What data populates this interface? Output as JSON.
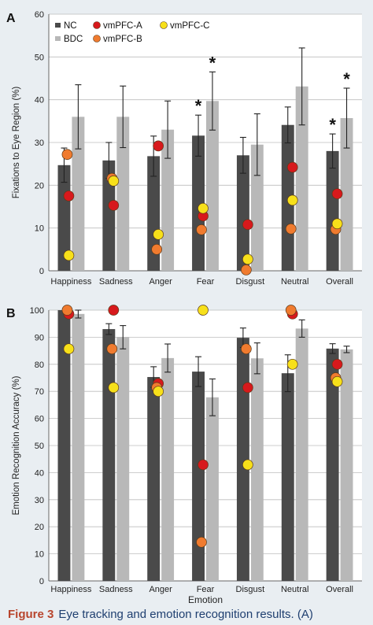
{
  "figure": {
    "caption_label": "Figure 3",
    "caption_text": "Eye tracking and emotion recognition results. (A)",
    "colors": {
      "nc": "#4a4a4a",
      "bdc": "#b8b8b8",
      "vmpfc_a": "#d7191c",
      "vmpfc_b": "#f07b2f",
      "vmpfc_c": "#f7e01a",
      "background": "#e9eef2",
      "caption": "#1f3f70"
    }
  },
  "chart_data": [
    {
      "panel": "A",
      "type": "bar",
      "ylabel": "Fixations to Eye Region (%)",
      "xlabel": "",
      "ylim": [
        0,
        60
      ],
      "yticks": [
        0,
        10,
        20,
        30,
        40,
        50,
        60
      ],
      "grid": true,
      "legend": [
        "NC",
        "BDC",
        "vmPFC-A",
        "vmPFC-C",
        "vmPFC-B"
      ],
      "categories": [
        "Happiness",
        "Sadness",
        "Anger",
        "Fear",
        "Disgust",
        "Neutral",
        "Overall"
      ],
      "series": [
        {
          "name": "NC",
          "values": [
            24.7,
            25.8,
            26.8,
            31.6,
            27.0,
            34.1,
            28.0
          ],
          "error": [
            4.0,
            4.2,
            4.7,
            4.8,
            4.2,
            4.2,
            4.0
          ]
        },
        {
          "name": "BDC",
          "values": [
            36.0,
            36.0,
            33.0,
            39.7,
            29.5,
            43.1,
            35.7
          ],
          "error": [
            7.5,
            7.2,
            6.7,
            6.8,
            7.2,
            9.0,
            7.0
          ]
        }
      ],
      "points": [
        {
          "name": "vmPFC-A",
          "values": [
            17.5,
            15.3,
            29.2,
            12.8,
            10.8,
            24.2,
            18.0
          ]
        },
        {
          "name": "vmPFC-B",
          "values": [
            27.2,
            21.6,
            5.0,
            9.6,
            0.2,
            9.8,
            9.7
          ]
        },
        {
          "name": "vmPFC-C",
          "values": [
            3.6,
            21.0,
            8.5,
            14.6,
            2.7,
            16.5,
            11.0
          ]
        }
      ],
      "significance": [
        {
          "category": "Fear",
          "series": "NC",
          "label": "*"
        },
        {
          "category": "Fear",
          "series": "BDC",
          "label": "*"
        },
        {
          "category": "Overall",
          "series": "NC",
          "label": "*"
        },
        {
          "category": "Overall",
          "series": "BDC",
          "label": "*"
        }
      ]
    },
    {
      "panel": "B",
      "type": "bar",
      "ylabel": "Emotion Recognition Accuracy (%)",
      "xlabel": "Emotion",
      "ylim": [
        0,
        100
      ],
      "yticks": [
        0,
        10,
        20,
        30,
        40,
        50,
        60,
        70,
        80,
        90,
        100
      ],
      "grid": true,
      "categories": [
        "Happiness",
        "Sadness",
        "Anger",
        "Fear",
        "Disgust",
        "Neutral",
        "Overall"
      ],
      "series": [
        {
          "name": "NC",
          "values": [
            100,
            93.0,
            75.3,
            77.3,
            89.8,
            76.7,
            85.8
          ],
          "error": [
            0,
            2.0,
            3.8,
            5.5,
            3.6,
            6.8,
            1.8
          ]
        },
        {
          "name": "BDC",
          "values": [
            98.6,
            90.0,
            82.3,
            67.8,
            82.2,
            93.2,
            85.5
          ],
          "error": [
            1.5,
            4.3,
            5.2,
            6.8,
            5.7,
            3.2,
            1.2
          ]
        }
      ],
      "points": [
        {
          "name": "vmPFC-A",
          "values": [
            98.6,
            100,
            72.9,
            42.9,
            71.4,
            98.6,
            80.0
          ]
        },
        {
          "name": "vmPFC-B",
          "values": [
            100,
            85.7,
            71.4,
            14.3,
            85.7,
            100,
            75.0
          ]
        },
        {
          "name": "vmPFC-C",
          "values": [
            85.7,
            71.4,
            70.0,
            100,
            42.9,
            80.0,
            73.6
          ]
        }
      ]
    }
  ]
}
